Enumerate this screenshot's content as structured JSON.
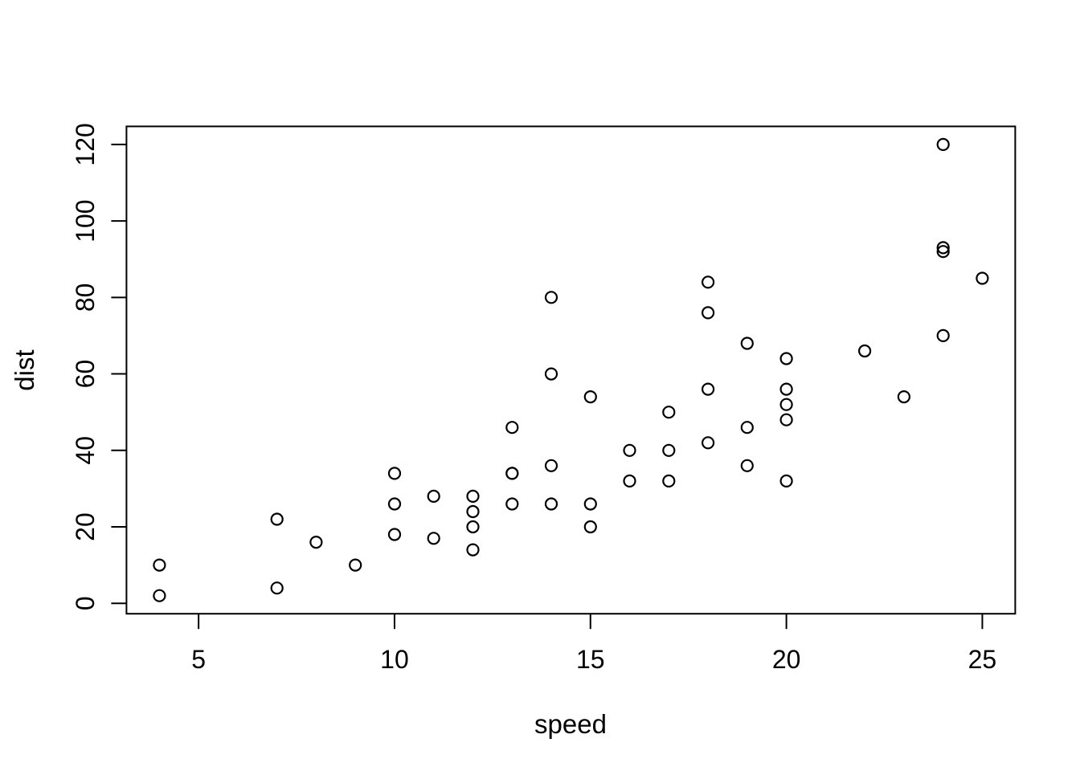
{
  "chart_data": {
    "type": "scatter",
    "title": "",
    "xlabel": "speed",
    "ylabel": "dist",
    "x_ticks": [
      5,
      10,
      15,
      20,
      25
    ],
    "y_ticks": [
      0,
      20,
      40,
      60,
      80,
      100,
      120
    ],
    "xlim": [
      3.16,
      25.84
    ],
    "ylim": [
      -2.72,
      124.72
    ],
    "grid": "off",
    "legend": "none",
    "marker": "open-circle",
    "marker_color": "#000000",
    "background_color": "#ffffff",
    "points": [
      [
        4,
        2
      ],
      [
        4,
        10
      ],
      [
        7,
        4
      ],
      [
        7,
        22
      ],
      [
        8,
        16
      ],
      [
        9,
        10
      ],
      [
        10,
        18
      ],
      [
        10,
        26
      ],
      [
        10,
        34
      ],
      [
        11,
        17
      ],
      [
        11,
        28
      ],
      [
        12,
        14
      ],
      [
        12,
        20
      ],
      [
        12,
        24
      ],
      [
        12,
        28
      ],
      [
        13,
        26
      ],
      [
        13,
        34
      ],
      [
        13,
        34
      ],
      [
        13,
        46
      ],
      [
        14,
        26
      ],
      [
        14,
        36
      ],
      [
        14,
        60
      ],
      [
        14,
        80
      ],
      [
        15,
        20
      ],
      [
        15,
        26
      ],
      [
        15,
        54
      ],
      [
        16,
        32
      ],
      [
        16,
        40
      ],
      [
        17,
        32
      ],
      [
        17,
        40
      ],
      [
        17,
        50
      ],
      [
        18,
        42
      ],
      [
        18,
        56
      ],
      [
        18,
        76
      ],
      [
        18,
        84
      ],
      [
        19,
        36
      ],
      [
        19,
        46
      ],
      [
        19,
        68
      ],
      [
        20,
        32
      ],
      [
        20,
        48
      ],
      [
        20,
        52
      ],
      [
        20,
        56
      ],
      [
        20,
        64
      ],
      [
        22,
        66
      ],
      [
        23,
        54
      ],
      [
        24,
        70
      ],
      [
        24,
        92
      ],
      [
        24,
        93
      ],
      [
        24,
        120
      ],
      [
        25,
        85
      ]
    ]
  }
}
